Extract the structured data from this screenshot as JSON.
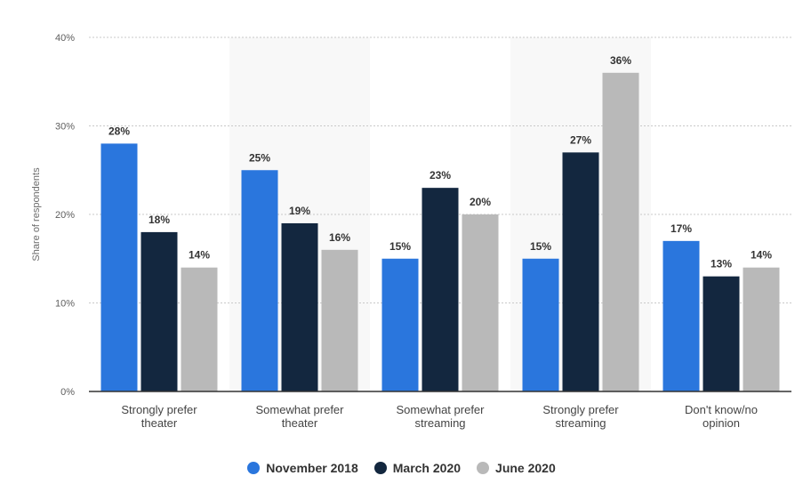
{
  "chart_data": {
    "type": "bar",
    "ylabel": "Share of respondents",
    "ylim": [
      0,
      40
    ],
    "yticks": [
      "0%",
      "10%",
      "20%",
      "30%",
      "40%"
    ],
    "ytick_values": [
      0,
      10,
      20,
      30,
      40
    ],
    "grid": true,
    "legend_position": "bottom",
    "categories": [
      [
        "Strongly prefer",
        "theater"
      ],
      [
        "Somewhat prefer",
        "theater"
      ],
      [
        "Somewhat prefer",
        "streaming"
      ],
      [
        "Strongly prefer",
        "streaming"
      ],
      [
        "Don't know/no",
        "opinion"
      ]
    ],
    "series": [
      {
        "name": "November 2018",
        "color": "#2a76dd",
        "values": [
          28,
          25,
          15,
          15,
          17
        ]
      },
      {
        "name": "March 2020",
        "color": "#13273f",
        "values": [
          18,
          19,
          23,
          27,
          13
        ]
      },
      {
        "name": "June 2020",
        "color": "#b9b9b9",
        "values": [
          14,
          16,
          20,
          36,
          14
        ]
      }
    ],
    "value_suffix": "%"
  }
}
